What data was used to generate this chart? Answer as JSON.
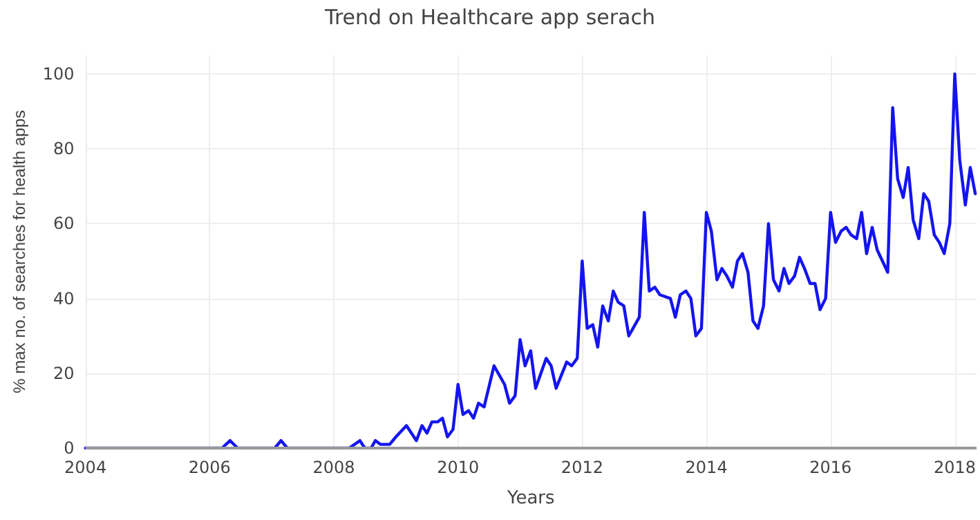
{
  "chart_data": {
    "type": "line",
    "title": "Trend on Healthcare app serach",
    "xlabel": "Years",
    "ylabel": "% max no. of searches for health apps",
    "x": [
      2004.0,
      2006.2,
      2006.33,
      2006.45,
      2007.05,
      2007.15,
      2007.25,
      2008.25,
      2008.42,
      2008.5,
      2008.6,
      2008.67,
      2008.75,
      2008.9,
      2009.0,
      2009.17,
      2009.33,
      2009.42,
      2009.5,
      2009.58,
      2009.67,
      2009.75,
      2009.83,
      2009.92,
      2010.0,
      2010.08,
      2010.17,
      2010.25,
      2010.33,
      2010.42,
      2010.58,
      2010.75,
      2010.83,
      2010.92,
      2011.0,
      2011.08,
      2011.17,
      2011.25,
      2011.42,
      2011.5,
      2011.58,
      2011.75,
      2011.83,
      2011.92,
      2012.0,
      2012.08,
      2012.17,
      2012.25,
      2012.33,
      2012.42,
      2012.5,
      2012.58,
      2012.67,
      2012.75,
      2012.92,
      2013.0,
      2013.08,
      2013.17,
      2013.25,
      2013.42,
      2013.5,
      2013.58,
      2013.67,
      2013.75,
      2013.83,
      2013.92,
      2014.0,
      2014.08,
      2014.17,
      2014.25,
      2014.33,
      2014.42,
      2014.5,
      2014.58,
      2014.67,
      2014.75,
      2014.83,
      2014.92,
      2015.0,
      2015.08,
      2015.17,
      2015.25,
      2015.33,
      2015.42,
      2015.5,
      2015.58,
      2015.67,
      2015.75,
      2015.83,
      2015.92,
      2016.0,
      2016.08,
      2016.17,
      2016.25,
      2016.33,
      2016.42,
      2016.5,
      2016.58,
      2016.67,
      2016.75,
      2016.92,
      2017.0,
      2017.08,
      2017.17,
      2017.25,
      2017.33,
      2017.42,
      2017.5,
      2017.58,
      2017.67,
      2017.75,
      2017.83,
      2017.92,
      2018.0,
      2018.08,
      2018.17,
      2018.25,
      2018.33
    ],
    "series": [
      {
        "color": "#1414f0",
        "values": [
          0,
          0,
          2,
          0,
          0,
          2,
          0,
          0,
          2,
          0,
          0,
          2,
          1,
          1,
          3,
          6,
          2,
          6,
          4,
          7,
          7,
          8,
          3,
          5,
          17,
          9,
          10,
          8,
          12,
          11,
          22,
          17,
          12,
          14,
          29,
          22,
          26,
          16,
          24,
          22,
          16,
          23,
          22,
          24,
          50,
          32,
          33,
          27,
          38,
          34,
          42,
          39,
          38,
          30,
          35,
          63,
          42,
          43,
          41,
          40,
          35,
          41,
          42,
          40,
          30,
          32,
          63,
          58,
          45,
          48,
          46,
          43,
          50,
          52,
          47,
          34,
          32,
          38,
          60,
          45,
          42,
          48,
          44,
          46,
          51,
          48,
          44,
          44,
          37,
          40,
          63,
          55,
          58,
          59,
          57,
          56,
          63,
          52,
          59,
          53,
          47,
          91,
          72,
          67,
          75,
          61,
          56,
          68,
          66,
          57,
          55,
          52,
          60,
          100,
          77,
          65,
          75,
          68
        ]
      }
    ],
    "xlim": [
      2004,
      2018.35
    ],
    "xticks": [
      2004,
      2006,
      2008,
      2010,
      2012,
      2014,
      2016,
      2018
    ],
    "ylim": [
      0,
      105
    ],
    "yticks": [
      0,
      20,
      40,
      60,
      80,
      100
    ],
    "grid": true,
    "marker": "none",
    "line_style": "solid"
  }
}
